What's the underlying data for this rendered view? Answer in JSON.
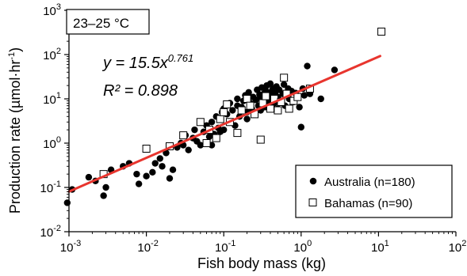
{
  "chart_data": {
    "type": "scatter",
    "panel_label": "23–25 °C",
    "equation": {
      "prefix": "y = 15.5x",
      "exponent": "0.761",
      "r2_text": "R² = 0.898"
    },
    "xlabel": "Fish body mass (kg)",
    "ylabel_prefix": "Production rate (µmol·hr",
    "ylabel_sup": "-1",
    "ylabel_suffix": ")",
    "x_scale": "log",
    "y_scale": "log",
    "xlim": [
      0.001,
      100
    ],
    "ylim": [
      0.01,
      1000
    ],
    "x_ticks": [
      {
        "value": 0.001,
        "base": "10",
        "exp": "-3"
      },
      {
        "value": 0.01,
        "base": "10",
        "exp": "-2"
      },
      {
        "value": 0.1,
        "base": "10",
        "exp": "-1"
      },
      {
        "value": 1,
        "base": "10",
        "exp": "0"
      },
      {
        "value": 10,
        "base": "10",
        "exp": "1"
      },
      {
        "value": 100,
        "base": "10",
        "exp": "2"
      }
    ],
    "y_ticks": [
      {
        "value": 0.01,
        "base": "10",
        "exp": "-2"
      },
      {
        "value": 0.1,
        "base": "10",
        "exp": "-1"
      },
      {
        "value": 1,
        "base": "10",
        "exp": "0"
      },
      {
        "value": 10,
        "base": "10",
        "exp": "1"
      },
      {
        "value": 100,
        "base": "10",
        "exp": "2"
      },
      {
        "value": 1000,
        "base": "10",
        "exp": "3"
      }
    ],
    "grid": false,
    "legend_position": "bottom-right",
    "fit_line": {
      "coefficient": 15.5,
      "exponent": 0.761,
      "x_range": [
        0.001,
        10.5
      ],
      "color": "#e8352e"
    },
    "series": [
      {
        "name": "Australia (n=180)",
        "marker": "filled-circle",
        "color": "#000000",
        "points": [
          [
            0.00095,
            0.045
          ],
          [
            0.0011,
            0.09
          ],
          [
            0.0018,
            0.17
          ],
          [
            0.0022,
            0.14
          ],
          [
            0.003,
            0.1
          ],
          [
            0.0028,
            0.065
          ],
          [
            0.0035,
            0.25
          ],
          [
            0.005,
            0.3
          ],
          [
            0.006,
            0.35
          ],
          [
            0.0075,
            0.2
          ],
          [
            0.008,
            0.12
          ],
          [
            0.01,
            0.18
          ],
          [
            0.012,
            0.22
          ],
          [
            0.013,
            0.35
          ],
          [
            0.015,
            0.45
          ],
          [
            0.016,
            0.3
          ],
          [
            0.02,
            0.16
          ],
          [
            0.022,
            0.25
          ],
          [
            0.018,
            0.6
          ],
          [
            0.025,
            0.8
          ],
          [
            0.028,
            1.0
          ],
          [
            0.03,
            0.9
          ],
          [
            0.032,
            1.5
          ],
          [
            0.035,
            0.7
          ],
          [
            0.04,
            1.3
          ],
          [
            0.042,
            2.0
          ],
          [
            0.045,
            1.1
          ],
          [
            0.05,
            0.9
          ],
          [
            0.055,
            1.8
          ],
          [
            0.06,
            2.5
          ],
          [
            0.065,
            1.4
          ],
          [
            0.07,
            3.0
          ],
          [
            0.075,
            1.6
          ],
          [
            0.08,
            4.0
          ],
          [
            0.085,
            2.2
          ],
          [
            0.09,
            3.5
          ],
          [
            0.095,
            5.0
          ],
          [
            0.1,
            2.0
          ],
          [
            0.1,
            6.0
          ],
          [
            0.11,
            4.5
          ],
          [
            0.12,
            3.0
          ],
          [
            0.12,
            8.0
          ],
          [
            0.13,
            5.5
          ],
          [
            0.14,
            2.5
          ],
          [
            0.15,
            7.0
          ],
          [
            0.15,
            10.0
          ],
          [
            0.16,
            4.0
          ],
          [
            0.17,
            6.5
          ],
          [
            0.18,
            9.0
          ],
          [
            0.19,
            12.0
          ],
          [
            0.2,
            3.5
          ],
          [
            0.2,
            5.0
          ],
          [
            0.21,
            14.0
          ],
          [
            0.22,
            8.0
          ],
          [
            0.23,
            6.0
          ],
          [
            0.24,
            11.0
          ],
          [
            0.25,
            4.5
          ],
          [
            0.26,
            9.5
          ],
          [
            0.27,
            16.0
          ],
          [
            0.28,
            7.0
          ],
          [
            0.29,
            12.5
          ],
          [
            0.3,
            5.5
          ],
          [
            0.3,
            10.0
          ],
          [
            0.31,
            18.0
          ],
          [
            0.32,
            8.5
          ],
          [
            0.33,
            13.0
          ],
          [
            0.34,
            6.5
          ],
          [
            0.35,
            15.0
          ],
          [
            0.36,
            20.0
          ],
          [
            0.37,
            9.0
          ],
          [
            0.38,
            11.5
          ],
          [
            0.39,
            7.5
          ],
          [
            0.4,
            14.0
          ],
          [
            0.4,
            22.0
          ],
          [
            0.42,
            10.5
          ],
          [
            0.43,
            17.0
          ],
          [
            0.45,
            8.0
          ],
          [
            0.46,
            13.5
          ],
          [
            0.48,
            19.0
          ],
          [
            0.5,
            11.0
          ],
          [
            0.5,
            6.0
          ],
          [
            0.52,
            16.0
          ],
          [
            0.55,
            9.0
          ],
          [
            0.58,
            13.0
          ],
          [
            0.6,
            21.0
          ],
          [
            0.62,
            7.0
          ],
          [
            0.65,
            12.0
          ],
          [
            0.68,
            17.0
          ],
          [
            0.7,
            10.0
          ],
          [
            0.75,
            15.0
          ],
          [
            0.8,
            8.5
          ],
          [
            0.85,
            13.5
          ],
          [
            0.9,
            11.0
          ],
          [
            0.95,
            6.5
          ],
          [
            1.0,
            2.3
          ],
          [
            1.05,
            17.0
          ],
          [
            1.1,
            12.0
          ],
          [
            1.2,
            55.0
          ],
          [
            1.3,
            13.0
          ],
          [
            1.8,
            10.0
          ],
          [
            2.7,
            45.0
          ],
          [
            0.07,
            0.9
          ],
          [
            0.09,
            1.8
          ]
        ]
      },
      {
        "name": "Bahamas (n=90)",
        "marker": "open-square",
        "color": "#000000",
        "points": [
          [
            0.0028,
            0.2
          ],
          [
            0.01,
            0.75
          ],
          [
            0.02,
            0.85
          ],
          [
            0.03,
            1.5
          ],
          [
            0.05,
            3.0
          ],
          [
            0.06,
            1.0
          ],
          [
            0.065,
            2.0
          ],
          [
            0.08,
            1.3
          ],
          [
            0.09,
            3.5
          ],
          [
            0.1,
            5.0
          ],
          [
            0.11,
            7.5
          ],
          [
            0.12,
            3.0
          ],
          [
            0.15,
            1.7
          ],
          [
            0.17,
            5.5
          ],
          [
            0.2,
            10.0
          ],
          [
            0.22,
            7.0
          ],
          [
            0.25,
            4.5
          ],
          [
            0.3,
            1.2
          ],
          [
            0.32,
            8.0
          ],
          [
            0.35,
            11.5
          ],
          [
            0.4,
            6.0
          ],
          [
            0.45,
            10.0
          ],
          [
            0.5,
            5.5
          ],
          [
            0.55,
            8.5
          ],
          [
            0.6,
            30.0
          ],
          [
            0.65,
            13.0
          ],
          [
            0.7,
            6.0
          ],
          [
            0.8,
            9.0
          ],
          [
            0.9,
            11.0
          ],
          [
            1.3,
            17.0
          ],
          [
            10.9,
            330.0
          ]
        ]
      }
    ]
  }
}
